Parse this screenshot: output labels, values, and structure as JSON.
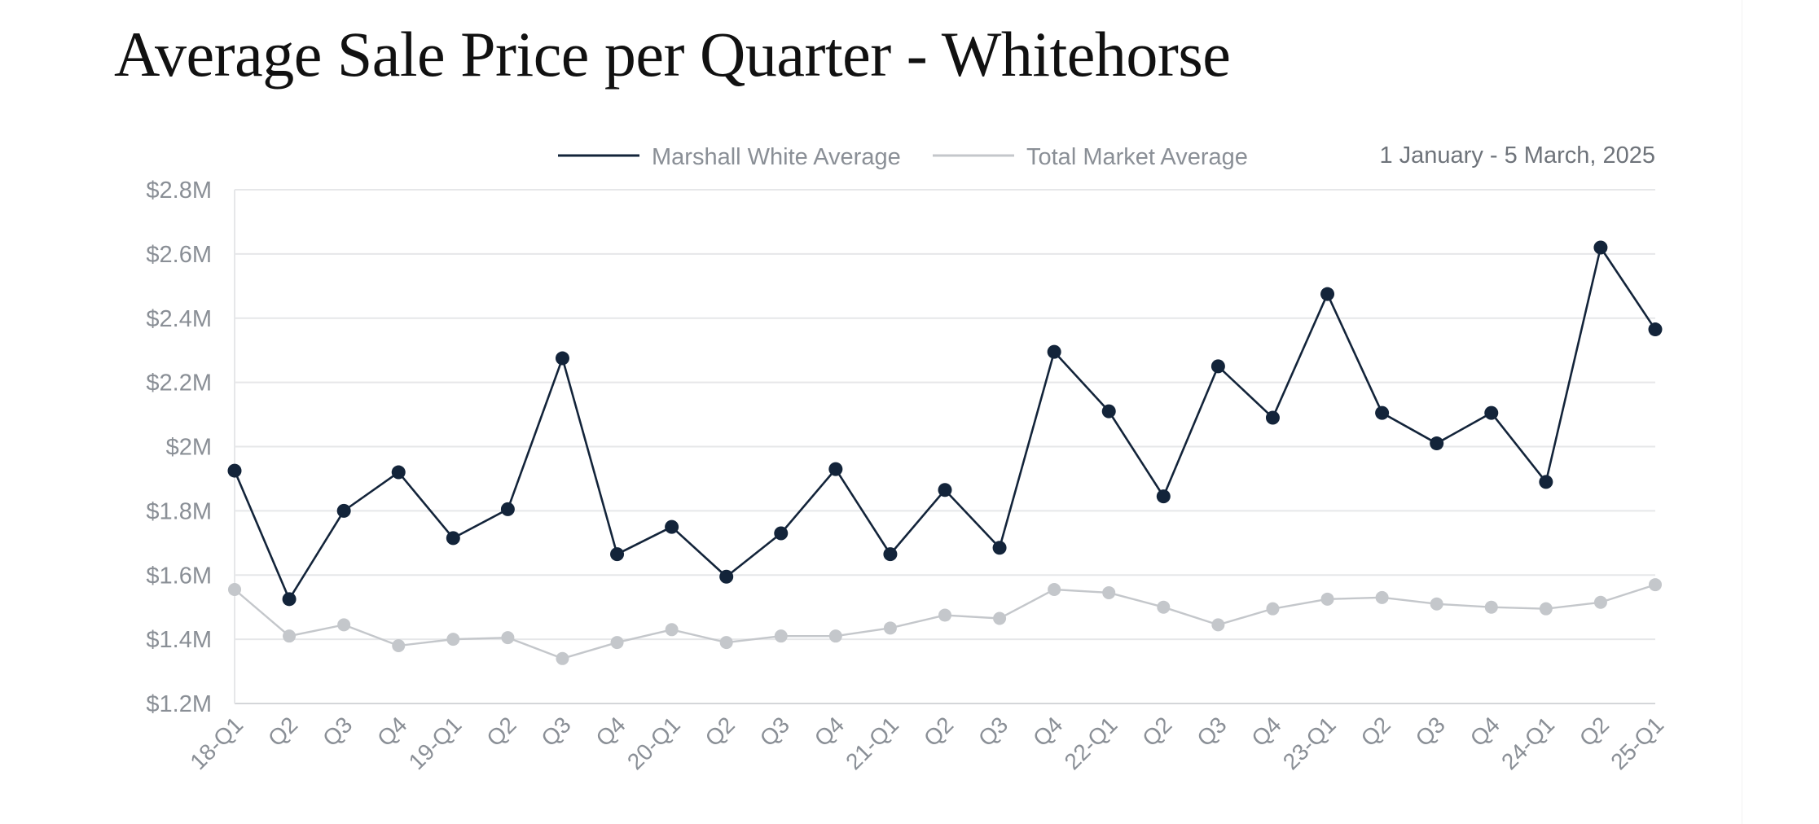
{
  "page": {
    "title": "Average Sale Price per Quarter - Whitehorse"
  },
  "chart_data": {
    "type": "line",
    "title": "Average Sale Price per Quarter - Whitehorse",
    "date_range": "1 January - 5 March, 2025",
    "xlabel": "",
    "ylabel": "",
    "ylim": [
      1.2,
      2.8
    ],
    "y_ticks": [
      1.2,
      1.4,
      1.6,
      1.8,
      2.0,
      2.2,
      2.4,
      2.6,
      2.8
    ],
    "y_tick_labels": [
      "$1.2M",
      "$1.4M",
      "$1.6M",
      "$1.8M",
      "$2M",
      "$2.2M",
      "$2.4M",
      "$2.6M",
      "$2.8M"
    ],
    "grid": true,
    "legend_position": "top-center",
    "categories": [
      "18-Q1",
      "Q2",
      "Q3",
      "Q4",
      "19-Q1",
      "Q2",
      "Q3",
      "Q4",
      "20-Q1",
      "Q2",
      "Q3",
      "Q4",
      "21-Q1",
      "Q2",
      "Q3",
      "Q4",
      "22-Q1",
      "Q2",
      "Q3",
      "Q4",
      "23-Q1",
      "Q2",
      "Q3",
      "Q4",
      "24-Q1",
      "Q2",
      "25-Q1"
    ],
    "series": [
      {
        "name": "Marshall White Average",
        "color": "#13243a",
        "values": [
          1.925,
          1.525,
          1.8,
          1.92,
          1.715,
          1.805,
          2.275,
          1.665,
          1.75,
          1.595,
          1.73,
          1.93,
          1.665,
          1.865,
          1.685,
          2.295,
          2.11,
          1.845,
          2.25,
          2.09,
          2.475,
          2.105,
          2.01,
          2.105,
          1.89,
          2.62,
          2.365
        ]
      },
      {
        "name": "Total Market Average",
        "color": "#c4c7cb",
        "values": [
          1.555,
          1.41,
          1.445,
          1.38,
          1.4,
          1.405,
          1.34,
          1.39,
          1.43,
          1.39,
          1.41,
          1.41,
          1.435,
          1.475,
          1.465,
          1.555,
          1.545,
          1.5,
          1.445,
          1.495,
          1.525,
          1.53,
          1.51,
          1.5,
          1.495,
          1.515,
          1.57
        ]
      }
    ]
  }
}
